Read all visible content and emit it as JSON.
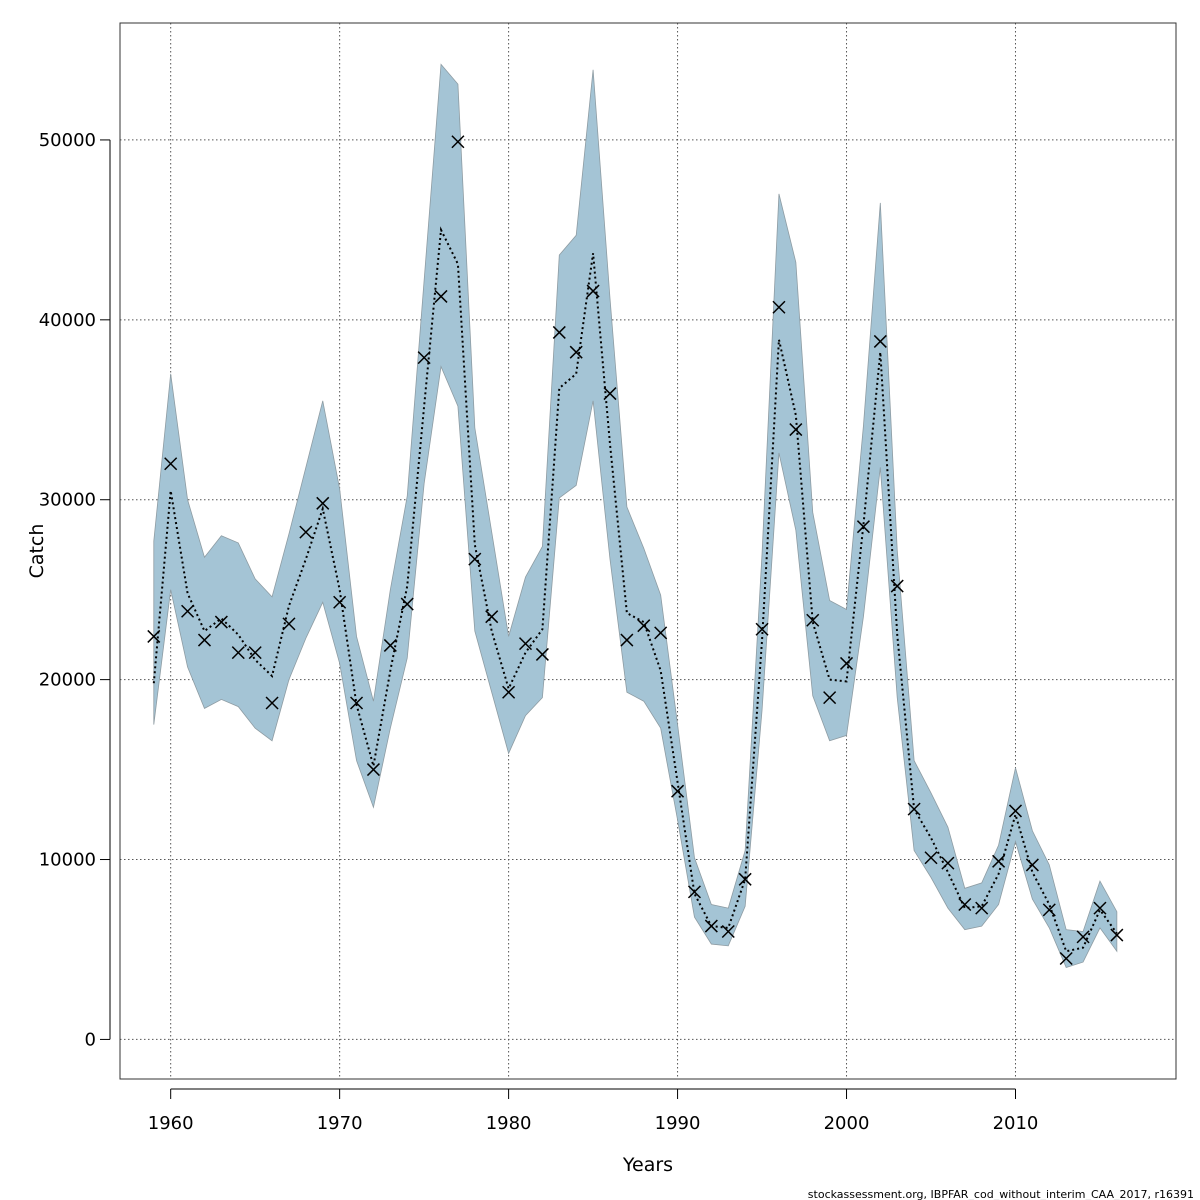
{
  "chart_data": {
    "type": "line",
    "title": "",
    "xlabel": "Years",
    "ylabel": "Catch",
    "xlim": [
      1957,
      2019.5
    ],
    "ylim": [
      -2200,
      56500
    ],
    "grid": true,
    "x_ticks": [
      1960,
      1970,
      1980,
      1990,
      2000,
      2010
    ],
    "y_ticks": [
      0,
      10000,
      20000,
      30000,
      40000,
      50000
    ],
    "x": [
      1959,
      1960,
      1961,
      1962,
      1963,
      1964,
      1965,
      1966,
      1967,
      1968,
      1969,
      1970,
      1971,
      1972,
      1973,
      1974,
      1975,
      1976,
      1977,
      1978,
      1979,
      1980,
      1981,
      1982,
      1983,
      1984,
      1985,
      1986,
      1987,
      1988,
      1989,
      1990,
      1991,
      1992,
      1993,
      1994,
      1995,
      1996,
      1997,
      1998,
      1999,
      2000,
      2001,
      2002,
      2003,
      2004,
      2005,
      2006,
      2007,
      2008,
      2009,
      2010,
      2011,
      2012,
      2013,
      2014,
      2015,
      2016
    ],
    "series": [
      {
        "type": "band",
        "upper": [
          27700,
          37000,
          30000,
          26800,
          28000,
          27600,
          25600,
          24600,
          28100,
          31800,
          35500,
          30600,
          22400,
          18800,
          25000,
          30200,
          42200,
          54200,
          53100,
          34000,
          28200,
          22400,
          25700,
          27400,
          43600,
          44700,
          53900,
          41200,
          29600,
          27300,
          24700,
          17500,
          10100,
          7500,
          7300,
          10500,
          27000,
          47000,
          43200,
          29300,
          24400,
          23900,
          34100,
          46500,
          27200,
          15500,
          13700,
          11800,
          8400,
          8700,
          10800,
          15100,
          11600,
          9700,
          6100,
          6000,
          8800,
          7100
        ],
        "lower": [
          17500,
          25000,
          20700,
          18400,
          18900,
          18500,
          17300,
          16600,
          20000,
          22300,
          24300,
          20900,
          15500,
          12900,
          17300,
          21200,
          30900,
          37400,
          35200,
          22700,
          19300,
          15900,
          18000,
          19000,
          30100,
          30800,
          35500,
          26700,
          19300,
          18800,
          17300,
          12200,
          6800,
          5300,
          5200,
          7400,
          18300,
          32600,
          28300,
          19100,
          16600,
          16900,
          23500,
          31800,
          19000,
          10500,
          9000,
          7300,
          6100,
          6300,
          7500,
          11000,
          7800,
          6200,
          4000,
          4300,
          6200,
          4900
        ]
      },
      {
        "type": "line",
        "values": [
          19800,
          30500,
          24800,
          22700,
          23400,
          22500,
          21100,
          20200,
          24100,
          26700,
          29500,
          25000,
          18600,
          15200,
          20500,
          25200,
          35200,
          45000,
          43100,
          27500,
          22700,
          19500,
          21500,
          22800,
          36200,
          37000,
          43700,
          33100,
          23700,
          23200,
          20500,
          14300,
          8100,
          6300,
          6200,
          8900,
          22200,
          38900,
          34700,
          23200,
          20000,
          19900,
          28600,
          38200,
          22500,
          12800,
          11200,
          9300,
          7300,
          7400,
          9200,
          12500,
          9300,
          7500,
          4900,
          5100,
          7200,
          5900
        ]
      },
      {
        "type": "scatter",
        "marker": "x",
        "values": [
          22400,
          32000,
          23800,
          22200,
          23200,
          21500,
          21500,
          18700,
          23100,
          28200,
          29800,
          24300,
          18700,
          15000,
          21900,
          24200,
          37900,
          41300,
          49900,
          26700,
          23500,
          19300,
          22000,
          21400,
          39300,
          38200,
          41600,
          35900,
          22200,
          23000,
          22600,
          13800,
          8200,
          6300,
          6000,
          8900,
          22800,
          40700,
          33900,
          23300,
          19000,
          20900,
          28500,
          38800,
          25200,
          12800,
          10100,
          9800,
          7500,
          7300,
          9900,
          12700,
          9700,
          7200,
          4500,
          5700,
          7300,
          5800
        ]
      }
    ],
    "colors": {
      "band_fill": "#a4c4d5",
      "band_edge": "#8e9ca3",
      "line": "#000000",
      "marker": "#000000",
      "grid": "#555555",
      "frame": "#333333"
    }
  },
  "footer": {
    "source": "stockassessment.org, IBPFAR_cod_without_interim_CAA_2017, r16391"
  }
}
